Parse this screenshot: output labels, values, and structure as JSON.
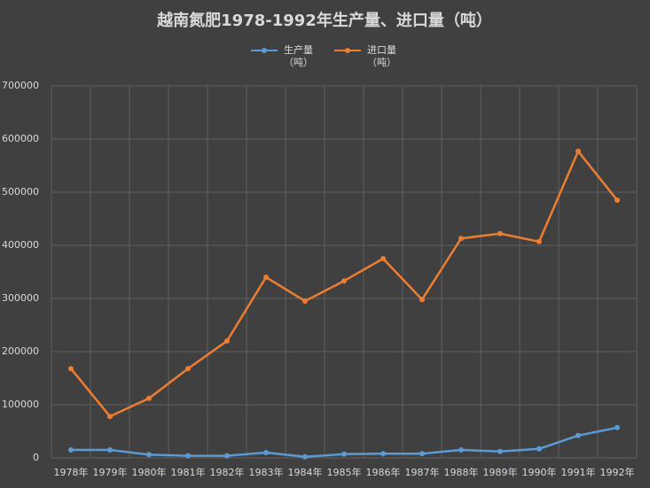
{
  "chart_data": {
    "type": "line",
    "title": "越南氮肥1978-1992年生产量、进口量（吨）",
    "categories": [
      "1978年",
      "1979年",
      "1980年",
      "1981年",
      "1982年",
      "1983年",
      "1984年",
      "1985年",
      "1986年",
      "1987年",
      "1988年",
      "1989年",
      "1990年",
      "1991年",
      "1992年"
    ],
    "series": [
      {
        "name": "生产量（吨）",
        "color": "#5b9bd5",
        "values": [
          15000,
          15000,
          6000,
          4000,
          4000,
          10000,
          2000,
          7000,
          8000,
          8000,
          15000,
          12000,
          17000,
          42000,
          57000
        ]
      },
      {
        "name": "进口量（吨）",
        "color": "#ed7d31",
        "values": [
          168000,
          78000,
          112000,
          168000,
          220000,
          340000,
          295000,
          333000,
          375000,
          298000,
          413000,
          422000,
          407000,
          577000,
          485000
        ]
      }
    ],
    "ylim": [
      0,
      700000
    ],
    "yticks": [
      0,
      100000,
      200000,
      300000,
      400000,
      500000,
      600000,
      700000
    ],
    "grid": true
  }
}
